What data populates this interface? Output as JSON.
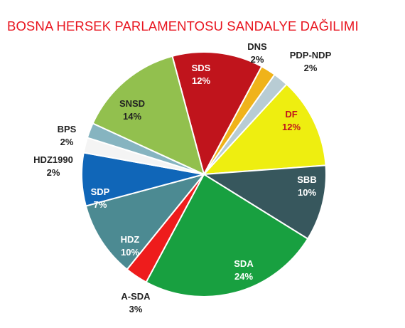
{
  "chart_data": {
    "type": "pie",
    "title": "BOSNA HERSEK PARLAMENTOSU SANDALYE DAĞILIMI",
    "slices": [
      {
        "name": "SDS",
        "label": "12%",
        "value": 12,
        "color": "#c0141c"
      },
      {
        "name": "DNS",
        "label": "2%",
        "value": 2,
        "color": "#f0b31a"
      },
      {
        "name": "PDP-NDP",
        "label": "2%",
        "value": 2,
        "color": "#b8ccd4"
      },
      {
        "name": "DF",
        "label": "12%",
        "value": 12,
        "color": "#eeee10"
      },
      {
        "name": "SBB",
        "label": "10%",
        "value": 10,
        "color": "#37575d"
      },
      {
        "name": "SDA",
        "label": "24%",
        "value": 24,
        "color": "#18a040"
      },
      {
        "name": "A-SDA",
        "label": "3%",
        "value": 3,
        "color": "#ee1c1c"
      },
      {
        "name": "HDZ",
        "label": "10%",
        "value": 10,
        "color": "#4c8a92"
      },
      {
        "name": "SDP",
        "label": "7%",
        "value": 7,
        "color": "#1066b8"
      },
      {
        "name": "HDZ1990",
        "label": "2%",
        "value": 2,
        "color": "#f4f4f4"
      },
      {
        "name": "BPS",
        "label": "2%",
        "value": 2,
        "color": "#86b4c0"
      },
      {
        "name": "SNSD",
        "label": "14%",
        "value": 14,
        "color": "#92c04e"
      }
    ]
  }
}
